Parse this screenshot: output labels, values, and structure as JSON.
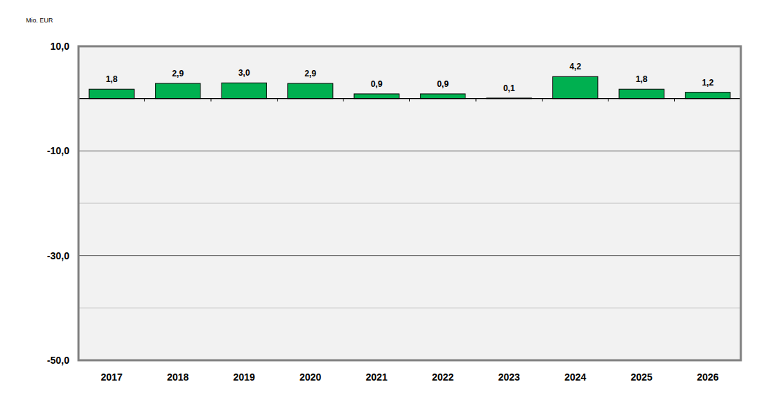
{
  "chart_data": {
    "type": "bar",
    "ylabel": "Mio. EUR",
    "categories": [
      "2017",
      "2018",
      "2019",
      "2020",
      "2021",
      "2022",
      "2023",
      "2024",
      "2025",
      "2026"
    ],
    "values": [
      1.8,
      2.9,
      3.0,
      2.9,
      0.9,
      0.9,
      0.1,
      4.2,
      1.8,
      1.2
    ],
    "value_labels": [
      "1,8",
      "2,9",
      "3,0",
      "2,9",
      "0,9",
      "0,9",
      "0,1",
      "4,2",
      "1,8",
      "1,2"
    ],
    "color": "#00b050",
    "ylim": [
      -50,
      10
    ],
    "yticks": [
      {
        "value": -50,
        "label": "-50,0"
      },
      {
        "value": -30,
        "label": "-30,0"
      },
      {
        "value": -10,
        "label": "-10,0"
      },
      {
        "value": 10,
        "label": "10,0"
      }
    ],
    "grid": true,
    "data_labels": true
  }
}
